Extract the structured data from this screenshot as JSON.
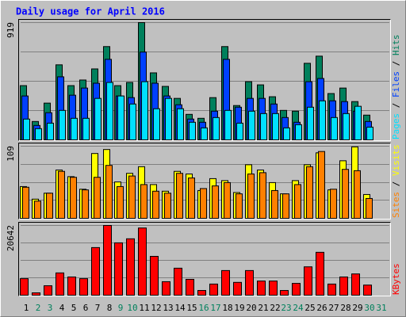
{
  "chart_data": [
    {
      "type": "bar",
      "title": "Daily usage for April 2016",
      "legend_separator": " / ",
      "categories": [
        "1",
        "2",
        "3",
        "4",
        "5",
        "6",
        "7",
        "8",
        "9",
        "10",
        "11",
        "12",
        "13",
        "14",
        "15",
        "16",
        "17",
        "18",
        "19",
        "20",
        "21",
        "22",
        "23",
        "24",
        "25",
        "26",
        "27",
        "28",
        "29",
        "30",
        "31"
      ],
      "category_colors": [
        "#000000",
        "#00805c",
        "#00805c",
        "#000000",
        "#000000",
        "#000000",
        "#000000",
        "#000000",
        "#00805c",
        "#00805c",
        "#000000",
        "#000000",
        "#000000",
        "#000000",
        "#000000",
        "#00805c",
        "#00805c",
        "#000000",
        "#000000",
        "#000000",
        "#000000",
        "#000000",
        "#00805c",
        "#00805c",
        "#000000",
        "#000000",
        "#000000",
        "#000000",
        "#000000",
        "#00805c",
        "#00805c"
      ],
      "ylim": [
        0,
        919
      ],
      "yticks": [
        919
      ],
      "grid": true,
      "series": [
        {
          "name": "Hits",
          "color": "#00805c",
          "values": [
            425,
            144,
            288,
            588,
            425,
            469,
            556,
            731,
            425,
            450,
            919,
            525,
            419,
            325,
            200,
            169,
            331,
            731,
            269,
            456,
            431,
            338,
            231,
            225,
            600,
            656,
            363,
            406,
            300,
            194,
            0
          ]
        },
        {
          "name": "Files",
          "color": "#0040ff",
          "values": [
            344,
            113,
            213,
            494,
            350,
            406,
            444,
            631,
            344,
            331,
            688,
            444,
            344,
            275,
            163,
            138,
            225,
            631,
            256,
            325,
            325,
            281,
            175,
            138,
            456,
            481,
            306,
            300,
            225,
            144,
            0
          ]
        },
        {
          "name": "Pages",
          "color": "#00e0ff",
          "values": [
            163,
            88,
            131,
            231,
            169,
            169,
            325,
            450,
            344,
            281,
            456,
            244,
            325,
            244,
            138,
            94,
            175,
            231,
            131,
            225,
            206,
            206,
            94,
            119,
            256,
            306,
            175,
            206,
            263,
            100,
            0
          ]
        }
      ]
    },
    {
      "type": "bar",
      "ylim": [
        0,
        109
      ],
      "yticks": [
        109
      ],
      "grid": true,
      "series": [
        {
          "name": "Visits",
          "color": "#ffff00",
          "values": [
            48,
            29,
            38,
            73,
            63,
            44,
            98,
            104,
            55,
            68,
            78,
            51,
            41,
            71,
            67,
            42,
            60,
            57,
            39,
            81,
            73,
            54,
            37,
            57,
            81,
            99,
            43,
            87,
            108,
            36,
            0
          ]
        },
        {
          "name": "Sites",
          "color": "#ff8000",
          "values": [
            47,
            26,
            38,
            71,
            62,
            43,
            62,
            80,
            48,
            64,
            51,
            41,
            38,
            68,
            61,
            45,
            49,
            54,
            37,
            67,
            69,
            42,
            37,
            51,
            78,
            101,
            44,
            74,
            72,
            30,
            0
          ]
        }
      ]
    },
    {
      "type": "bar",
      "ylim": [
        0,
        20642
      ],
      "yticks": [
        20642
      ],
      "grid": true,
      "series": [
        {
          "name": "KBytes",
          "color": "#ff0000",
          "values": [
            4900,
            700,
            2800,
            6600,
            5400,
            4900,
            14100,
            20642,
            15500,
            16700,
            19900,
            11500,
            4000,
            8000,
            4700,
            1400,
            3300,
            7300,
            3800,
            7300,
            4200,
            4200,
            1400,
            3500,
            8400,
            12700,
            3300,
            5400,
            6300,
            3000,
            0
          ]
        }
      ]
    }
  ]
}
